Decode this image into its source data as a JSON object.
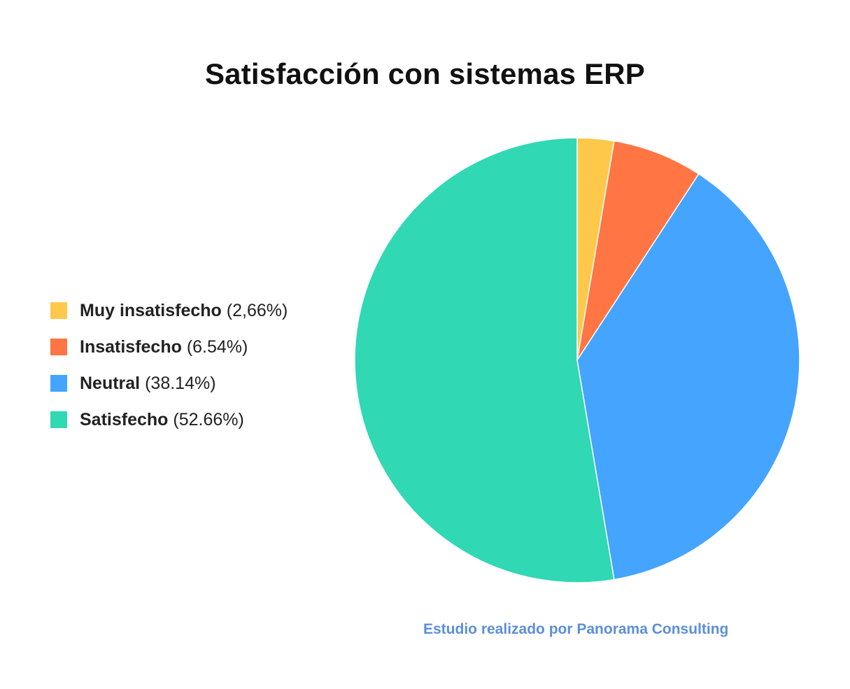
{
  "chart_data": {
    "type": "pie",
    "title": "Satisfacción con sistemas ERP",
    "legend_position": "left",
    "slices": [
      {
        "name": "Muy insatisfecho",
        "value": 2.66,
        "pct_label": "(2,66%)",
        "color": "#fec84a"
      },
      {
        "name": "Insatisfecho",
        "value": 6.54,
        "pct_label": "(6.54%)",
        "color": "#ff7543"
      },
      {
        "name": "Neutral",
        "value": 38.14,
        "pct_label": "(38.14%)",
        "color": "#44a4fe"
      },
      {
        "name": "Satisfecho",
        "value": 52.66,
        "pct_label": "(52.66%)",
        "color": "#30d8b4"
      }
    ]
  },
  "source_note": "Estudio realizado por Panorama Consulting"
}
